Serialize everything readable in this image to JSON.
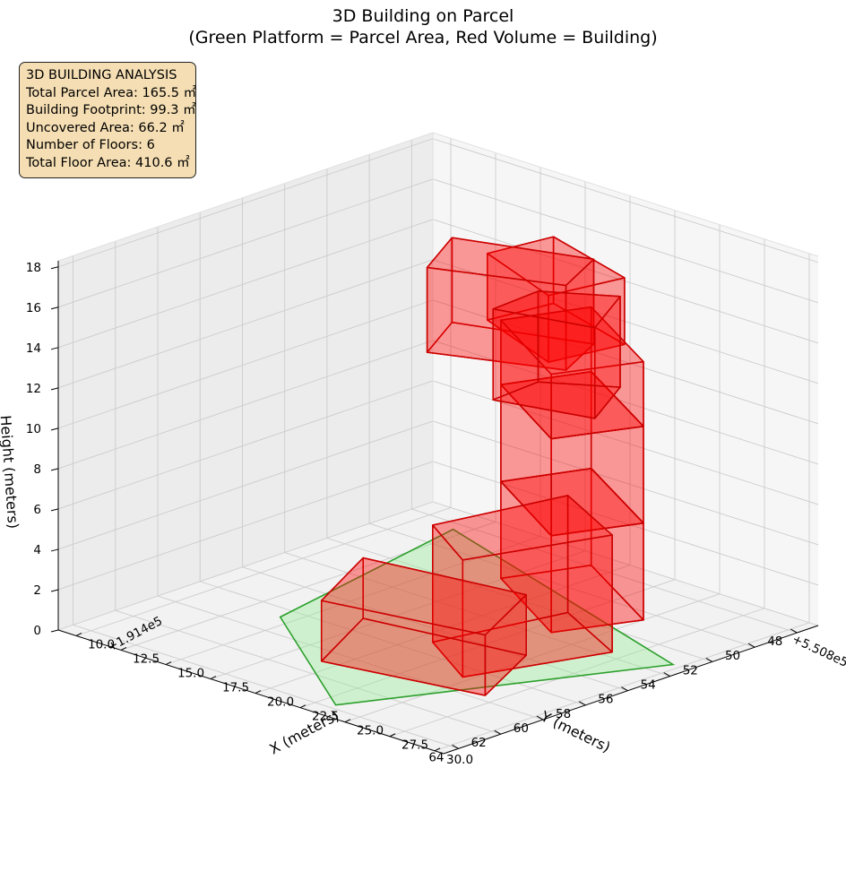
{
  "title_lines": [
    "3D Building on Parcel",
    "(Green Platform = Parcel Area, Red Volume = Building)"
  ],
  "info_box": {
    "lines": [
      "3D BUILDING ANALYSIS",
      "Total Parcel Area: 165.5 ㎡",
      "Building Footprint: 99.3 ㎡",
      "Uncovered Area: 66.2 ㎡",
      "Number of Floors: 6",
      "Total Floor Area: 410.6 ㎡"
    ]
  },
  "colors": {
    "building_fill": "#ff0000",
    "building_edge": "#cc0000",
    "parcel_fill": "#90ee90",
    "parcel_edge": "#2ca02c",
    "info_box_bg": "#f5deb3"
  },
  "chart_data": {
    "type": "3d-volume",
    "axes": {
      "x": {
        "label": "X (meters)",
        "range": [
          9,
          30.5
        ],
        "offset_label": "+1.914e5",
        "ticks": [
          10.0,
          12.5,
          15.0,
          17.5,
          20.0,
          22.5,
          25.0,
          27.5,
          30.0
        ],
        "tick_labels": [
          "10.0",
          "12.5",
          "15.0",
          "17.5",
          "20.0",
          "22.5",
          "25.0",
          "27.5",
          "30.0"
        ]
      },
      "y": {
        "label": "Y (meters)",
        "range": [
          47,
          64.7
        ],
        "offset_label": "+5.508e5",
        "ticks": [
          48,
          50,
          52,
          54,
          56,
          58,
          60,
          62,
          64
        ],
        "tick_labels": [
          "48",
          "50",
          "52",
          "54",
          "56",
          "58",
          "60",
          "62",
          "64"
        ]
      },
      "z": {
        "label": "Height (meters)",
        "range": [
          0,
          18.3
        ],
        "ticks": [
          0,
          2,
          4,
          6,
          8,
          10,
          12,
          14,
          16,
          18
        ],
        "tick_labels": [
          "0",
          "2",
          "4",
          "6",
          "8",
          "10",
          "12",
          "14",
          "16",
          "18"
        ]
      }
    },
    "grid": true,
    "parcel": {
      "polygon": [
        [
          11.9,
          48.5
        ],
        [
          29.6,
          53.1
        ],
        [
          23.3,
          63.7
        ],
        [
          14.3,
          58.7
        ]
      ]
    },
    "floors": [
      {
        "z0": 0,
        "z1": 3,
        "rect": [
          [
            24.6,
            55.8
          ],
          [
            26.8,
            59.6
          ],
          [
            19.2,
            60.9
          ],
          [
            16.8,
            56.9
          ]
        ]
      },
      {
        "z0": 0,
        "z1": 5.8,
        "rect": [
          [
            26.8,
            53.6
          ],
          [
            24.6,
            58.8
          ],
          [
            20.8,
            57.0
          ],
          [
            22.2,
            51.8
          ]
        ]
      },
      {
        "z0": 0,
        "z1": 4.8,
        "rect": [
          [
            25.0,
            50.6
          ],
          [
            23.4,
            53.6
          ],
          [
            17.4,
            50.9
          ],
          [
            18.9,
            47.9
          ]
        ]
      },
      {
        "z0": 4.8,
        "z1": 9.6,
        "rect": [
          [
            25.0,
            50.6
          ],
          [
            23.4,
            53.6
          ],
          [
            17.4,
            50.9
          ],
          [
            18.9,
            47.9
          ]
        ]
      },
      {
        "z0": 9.6,
        "z1": 12.8,
        "rect": [
          [
            25.0,
            50.6
          ],
          [
            23.4,
            53.6
          ],
          [
            17.4,
            50.9
          ],
          [
            18.9,
            47.9
          ]
        ]
      },
      {
        "z0": 12.8,
        "z1": 16.1,
        "rect": [
          [
            23.0,
            49.8
          ],
          [
            22.3,
            52.8
          ],
          [
            17.0,
            51.2
          ],
          [
            17.5,
            48.5
          ]
        ]
      },
      {
        "z0": 10.4,
        "z1": 14.9,
        "rect": [
          [
            22.4,
            49.5
          ],
          [
            24.3,
            52.3
          ],
          [
            19.8,
            53.3
          ],
          [
            19.6,
            51.0
          ]
        ]
      },
      {
        "z0": 12.4,
        "z1": 16.6,
        "rect": [
          [
            17.3,
            54.3
          ],
          [
            15.5,
            51.6
          ],
          [
            21.4,
            49.9
          ],
          [
            22.8,
            52.4
          ]
        ]
      }
    ]
  }
}
